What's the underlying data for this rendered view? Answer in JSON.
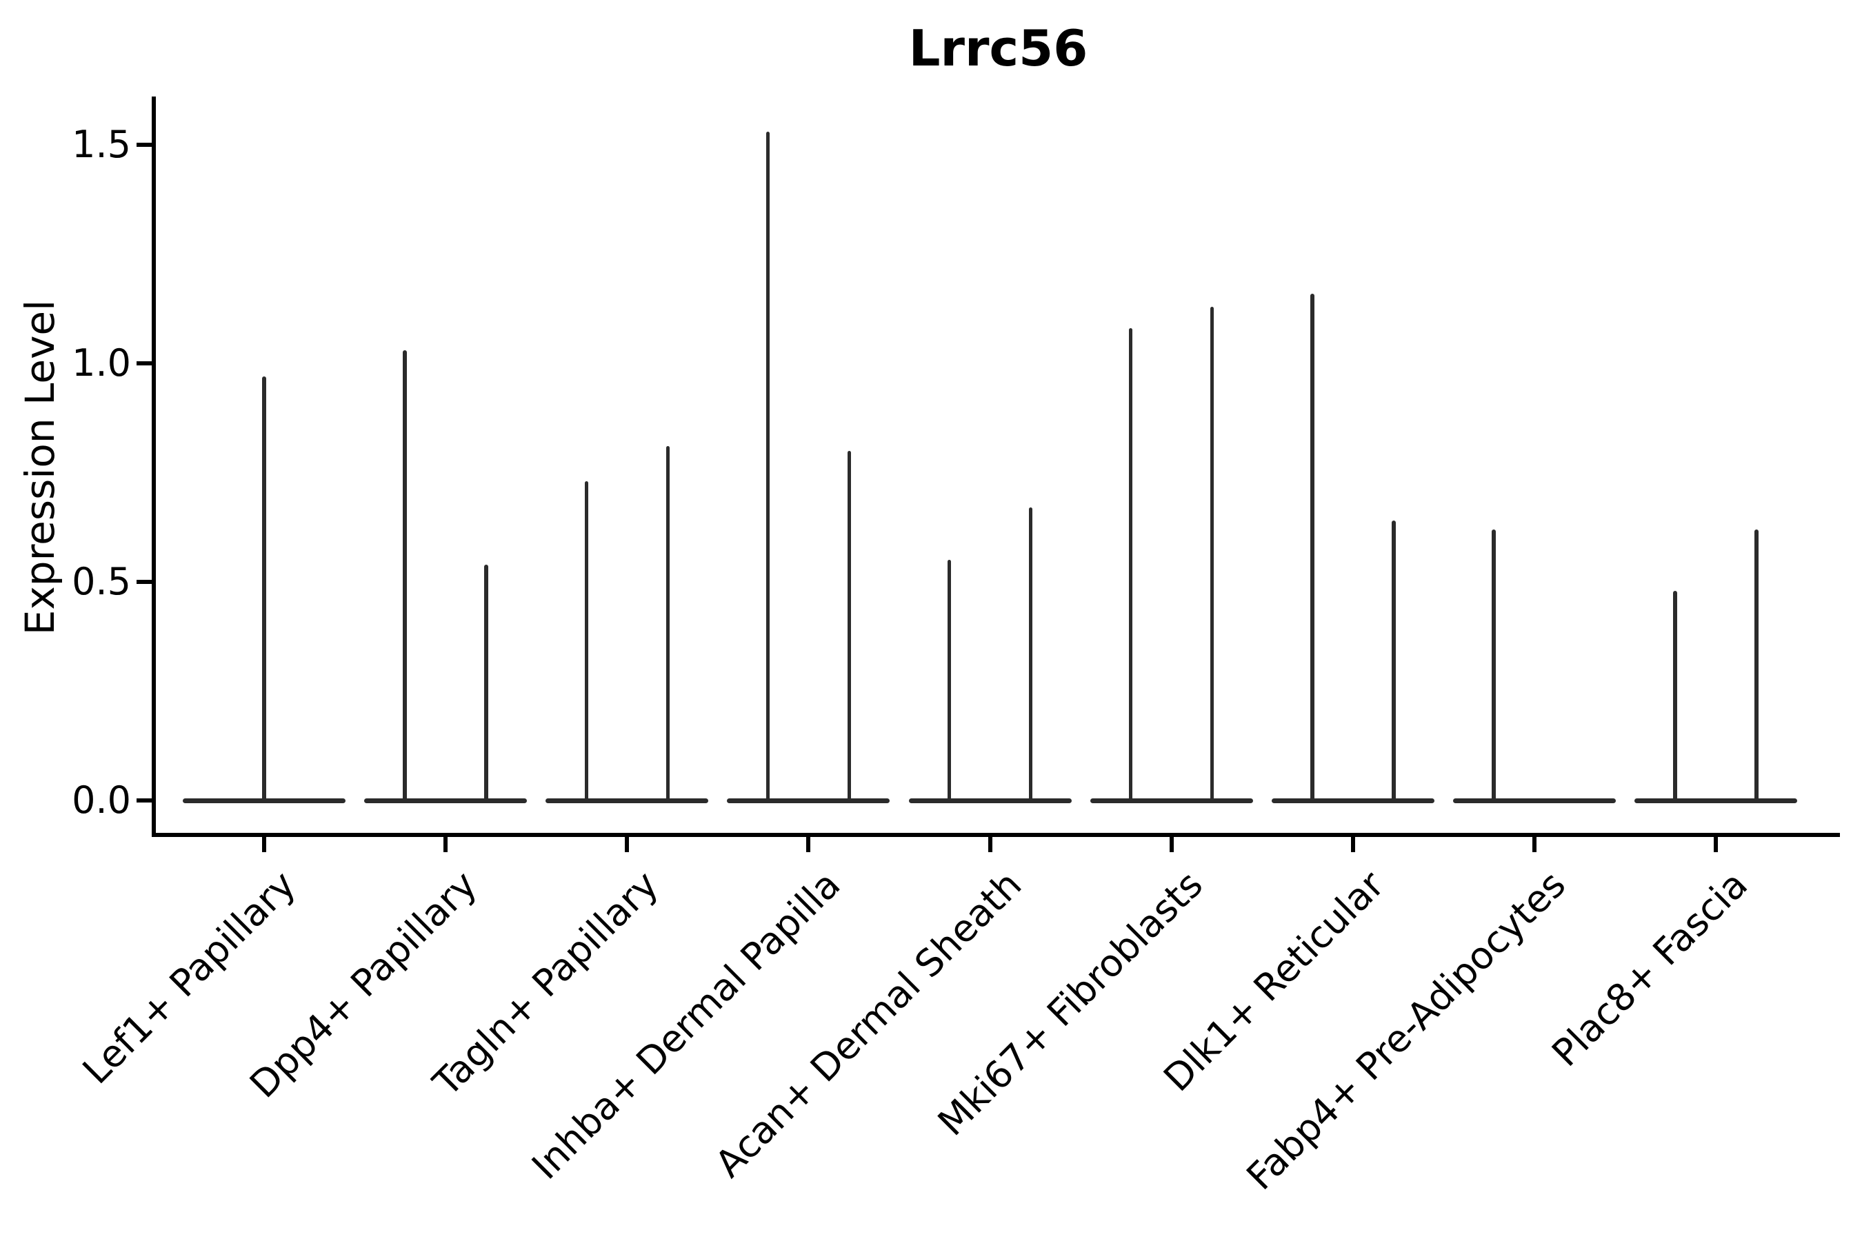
{
  "title": "Lrrc56",
  "ylabel": "Expression Level",
  "colors": {
    "ink": "#2b2b2b",
    "axis": "#000000",
    "background": "#ffffff"
  },
  "chart_data": {
    "type": "violin",
    "title": "Lrrc56",
    "xlabel": "",
    "ylabel": "Expression Level",
    "ylim": [
      0,
      1.6
    ],
    "yticks": [
      0.0,
      0.5,
      1.0,
      1.5
    ],
    "ytick_labels": [
      "0.0",
      "0.5",
      "1.0",
      "1.5"
    ],
    "grid": "off",
    "legend": "none",
    "description": "Seurat-style violin plot of Lrrc56 expression; nearly all cells express 0, so each violin collapses to a flat bar at 0 with a thin vertical spike up to the maximum expression. Categories with two spikes contain two side-by-side violins (left/right); spike value = maximum expression level.",
    "categories": [
      {
        "label": "Lef1+ Papillary",
        "violins": [
          {
            "position": "center",
            "max": 0.97
          }
        ]
      },
      {
        "label": "Dpp4+ Papillary",
        "violins": [
          {
            "position": "left",
            "max": 1.03
          },
          {
            "position": "right",
            "max": 0.54
          }
        ]
      },
      {
        "label": "Tagln+ Papillary",
        "violins": [
          {
            "position": "left",
            "max": 0.73
          },
          {
            "position": "right",
            "max": 0.81
          }
        ]
      },
      {
        "label": "Inhba+ Dermal Papilla",
        "violins": [
          {
            "position": "left",
            "max": 1.53
          },
          {
            "position": "right",
            "max": 0.8
          }
        ]
      },
      {
        "label": "Acan+ Dermal Sheath",
        "violins": [
          {
            "position": "left",
            "max": 0.55
          },
          {
            "position": "right",
            "max": 0.67
          }
        ]
      },
      {
        "label": "Mki67+ Fibroblasts",
        "violins": [
          {
            "position": "left",
            "max": 1.08
          },
          {
            "position": "right",
            "max": 1.13
          }
        ]
      },
      {
        "label": "Dlk1+ Reticular",
        "violins": [
          {
            "position": "left",
            "max": 1.16
          },
          {
            "position": "right",
            "max": 0.64
          }
        ]
      },
      {
        "label": "Fabp4+ Pre-Adipocytes",
        "violins": [
          {
            "position": "left",
            "max": 0.62
          },
          {
            "position": "right",
            "max": 0.0
          }
        ]
      },
      {
        "label": "Plac8+ Fascia",
        "violins": [
          {
            "position": "left",
            "max": 0.48
          },
          {
            "position": "right",
            "max": 0.62
          }
        ]
      }
    ]
  }
}
